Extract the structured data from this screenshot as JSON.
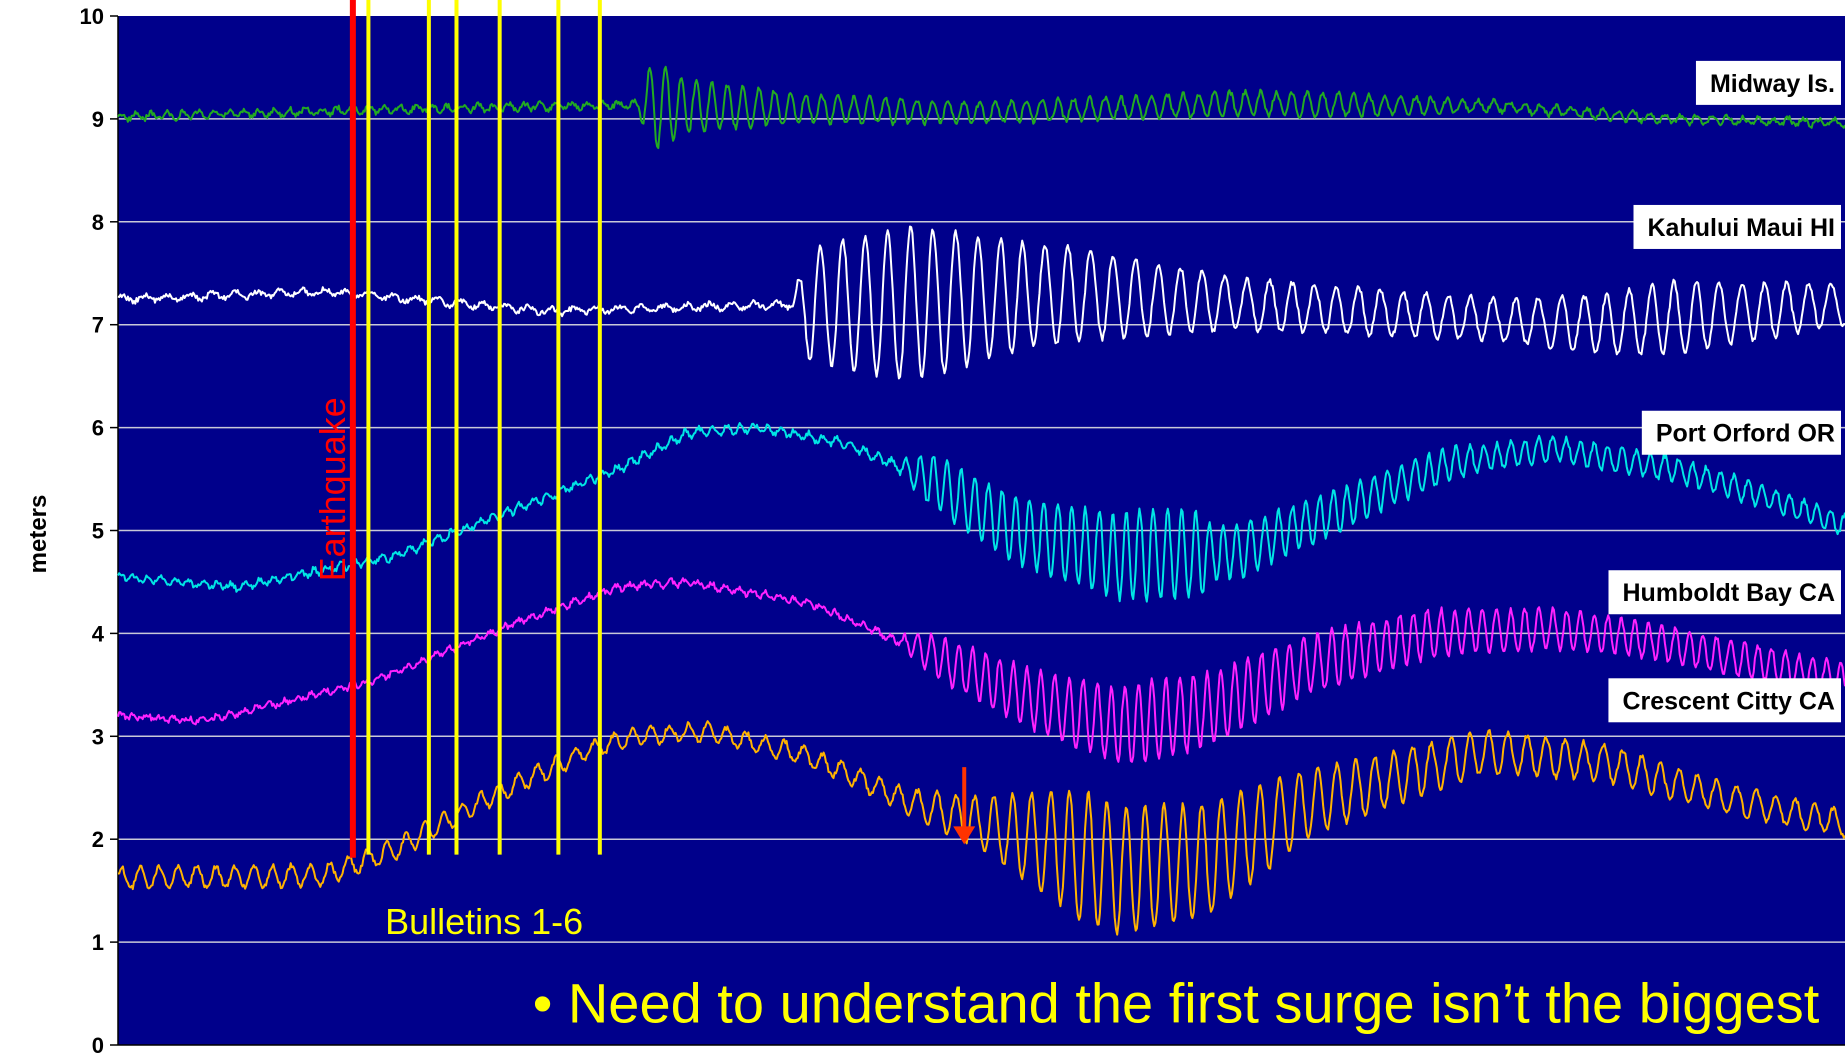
{
  "chart_data": {
    "type": "line",
    "title": "",
    "xlabel": "",
    "ylabel": "meters",
    "ylim": [
      0,
      10
    ],
    "y_ticks": [
      "0",
      "1",
      "2",
      "3",
      "4",
      "5",
      "6",
      "7",
      "8",
      "9",
      "10"
    ],
    "grid": true,
    "plot_background": "#00008B",
    "x_unit": "fraction of time window (unlabeled axis)",
    "series": [
      {
        "name": "Midway Is.",
        "color": "#22AA22",
        "baseline": [
          [
            0,
            9.02
          ],
          [
            0.13,
            9.08
          ],
          [
            0.3,
            9.14
          ],
          [
            0.5,
            9.06
          ],
          [
            0.65,
            9.15
          ],
          [
            0.8,
            9.12
          ],
          [
            0.9,
            9.0
          ],
          [
            1.0,
            8.96
          ]
        ],
        "oscillation": [
          [
            0,
            0.03
          ],
          [
            0.3,
            0.03
          ],
          [
            0.31,
            0.45
          ],
          [
            0.33,
            0.25
          ],
          [
            0.4,
            0.14
          ],
          [
            0.5,
            0.1
          ],
          [
            0.7,
            0.12
          ],
          [
            0.8,
            0.05
          ],
          [
            1.0,
            0.03
          ]
        ],
        "period": 0.009
      },
      {
        "name": "Kahului Maui HI",
        "color": "#FFFFFF",
        "baseline": [
          [
            0,
            7.25
          ],
          [
            0.12,
            7.32
          ],
          [
            0.25,
            7.13
          ],
          [
            0.39,
            7.2
          ],
          [
            0.45,
            7.2
          ],
          [
            0.55,
            7.3
          ],
          [
            0.7,
            7.15
          ],
          [
            0.85,
            7.0
          ],
          [
            1.0,
            7.2
          ]
        ],
        "oscillation": [
          [
            0,
            0.03
          ],
          [
            0.39,
            0.03
          ],
          [
            0.4,
            0.55
          ],
          [
            0.46,
            0.75
          ],
          [
            0.53,
            0.5
          ],
          [
            0.65,
            0.25
          ],
          [
            0.8,
            0.2
          ],
          [
            0.9,
            0.35
          ],
          [
            1.0,
            0.2
          ]
        ],
        "period": 0.013
      },
      {
        "name": "Port Orford OR",
        "color": "#00E5E5",
        "baseline": [
          [
            0,
            4.55
          ],
          [
            0.07,
            4.45
          ],
          [
            0.16,
            4.75
          ],
          [
            0.29,
            5.6
          ],
          [
            0.33,
            5.95
          ],
          [
            0.37,
            6.0
          ],
          [
            0.42,
            5.85
          ],
          [
            0.47,
            5.5
          ],
          [
            0.52,
            5.0
          ],
          [
            0.58,
            4.75
          ],
          [
            0.65,
            4.8
          ],
          [
            0.7,
            5.15
          ],
          [
            0.77,
            5.65
          ],
          [
            0.83,
            5.8
          ],
          [
            0.9,
            5.6
          ],
          [
            0.95,
            5.35
          ],
          [
            1.0,
            5.05
          ]
        ],
        "oscillation": [
          [
            0,
            0.03
          ],
          [
            0.45,
            0.04
          ],
          [
            0.47,
            0.25
          ],
          [
            0.6,
            0.45
          ],
          [
            0.66,
            0.35
          ],
          [
            0.8,
            0.18
          ],
          [
            1.0,
            0.15
          ]
        ],
        "period": 0.008
      },
      {
        "name": "Humboldt Bay CA",
        "color": "#FF22FF",
        "baseline": [
          [
            0,
            3.2
          ],
          [
            0.05,
            3.15
          ],
          [
            0.15,
            3.55
          ],
          [
            0.23,
            4.1
          ],
          [
            0.29,
            4.45
          ],
          [
            0.33,
            4.5
          ],
          [
            0.4,
            4.3
          ],
          [
            0.47,
            3.8
          ],
          [
            0.53,
            3.35
          ],
          [
            0.58,
            3.1
          ],
          [
            0.63,
            3.25
          ],
          [
            0.69,
            3.7
          ],
          [
            0.76,
            4.0
          ],
          [
            0.83,
            4.05
          ],
          [
            0.88,
            3.95
          ],
          [
            0.94,
            3.75
          ],
          [
            1.0,
            3.55
          ]
        ],
        "oscillation": [
          [
            0,
            0.02
          ],
          [
            0.45,
            0.03
          ],
          [
            0.47,
            0.2
          ],
          [
            0.6,
            0.4
          ],
          [
            0.68,
            0.3
          ],
          [
            0.8,
            0.2
          ],
          [
            1.0,
            0.15
          ]
        ],
        "period": 0.008
      },
      {
        "name": "Crescent Citty CA",
        "color": "#FFB300",
        "baseline": [
          [
            0,
            1.62
          ],
          [
            0.12,
            1.65
          ],
          [
            0.16,
            1.9
          ],
          [
            0.22,
            2.45
          ],
          [
            0.27,
            2.85
          ],
          [
            0.3,
            3.0
          ],
          [
            0.34,
            3.05
          ],
          [
            0.4,
            2.8
          ],
          [
            0.46,
            2.35
          ],
          [
            0.53,
            2.0
          ],
          [
            0.58,
            1.7
          ],
          [
            0.63,
            1.8
          ],
          [
            0.69,
            2.35
          ],
          [
            0.74,
            2.6
          ],
          [
            0.79,
            2.85
          ],
          [
            0.86,
            2.75
          ],
          [
            0.93,
            2.4
          ],
          [
            1.0,
            2.15
          ]
        ],
        "oscillation": [
          [
            0,
            0.1
          ],
          [
            0.14,
            0.1
          ],
          [
            0.3,
            0.08
          ],
          [
            0.45,
            0.1
          ],
          [
            0.5,
            0.25
          ],
          [
            0.56,
            0.65
          ],
          [
            0.63,
            0.55
          ],
          [
            0.7,
            0.3
          ],
          [
            0.8,
            0.2
          ],
          [
            1.0,
            0.12
          ]
        ],
        "period": 0.011
      }
    ],
    "earthquake_line": {
      "x": 0.136,
      "label": "Earthquake",
      "color": "#FF0000"
    },
    "bulletin_lines": {
      "x": [
        0.145,
        0.18,
        0.196,
        0.221,
        0.255,
        0.279
      ],
      "label": "Bulletins 1-6",
      "color": "#FFFF00"
    },
    "arrow": {
      "x": 0.49,
      "y_from": 2.7,
      "y_to": 1.95,
      "color": "#FF3300"
    },
    "note": "• Need to understand the first surge isn’t the biggest",
    "note_color": "#FFFF00"
  }
}
